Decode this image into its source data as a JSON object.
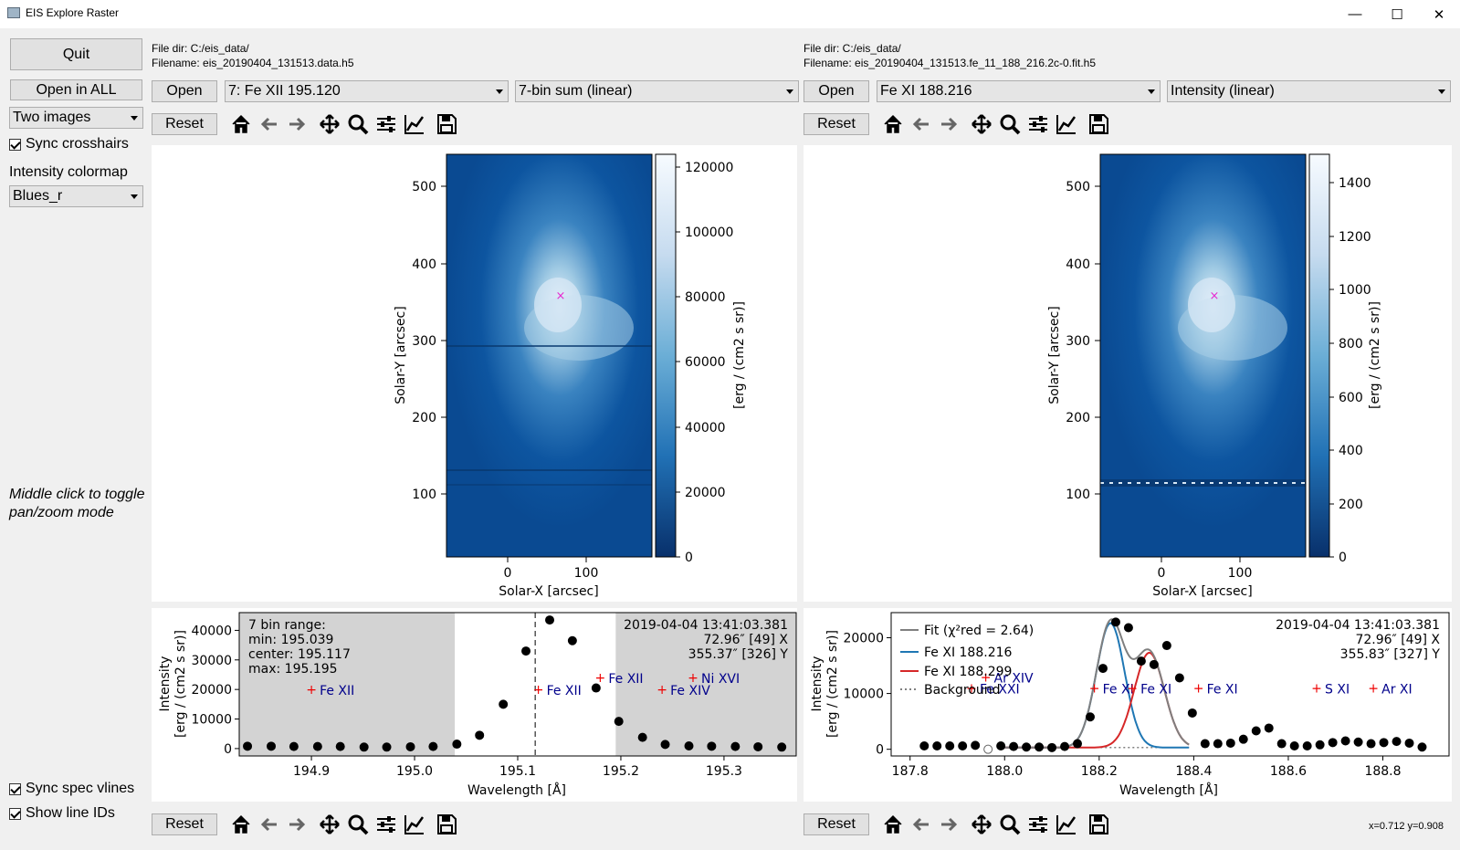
{
  "window": {
    "title": "EIS Explore Raster",
    "minimize": "—",
    "maximize": "☐",
    "close": "✕"
  },
  "sidebar": {
    "quit": "Quit",
    "open_all": "Open in ALL",
    "layout": "Two images",
    "sync_crosshairs": "Sync crosshairs",
    "colormap_label": "Intensity colormap",
    "colormap": "Blues_r",
    "hint_line1": "Middle click to toggle",
    "hint_line2": "pan/zoom mode",
    "sync_spec": "Sync spec vlines",
    "show_line_ids": "Show line IDs"
  },
  "left": {
    "file_dir": "File dir: C:/eis_data/",
    "filename": "Filename: eis_20190404_131513.data.h5",
    "open": "Open",
    "line": "7: Fe XII 195.120",
    "mode": "7-bin sum (linear)",
    "reset": "Reset",
    "reset_bottom": "Reset",
    "image": {
      "ylabel": "Solar-Y [arcsec]",
      "xlabel": "Solar-X [arcsec]",
      "yticks": [
        "500",
        "400",
        "300",
        "200",
        "100"
      ],
      "xticks": [
        "0",
        "100"
      ],
      "cbar_label": "[erg / (cm2 s sr)]",
      "cbar_ticks": [
        "120000",
        "100000",
        "80000",
        "60000",
        "40000",
        "20000",
        "0"
      ]
    },
    "spectrum": {
      "ylabel1": "Intensity",
      "ylabel2": "[erg / (cm2 s sr)]",
      "xlabel": "Wavelength [Å]",
      "range_title": "7 bin range:",
      "range_min": "min: 195.039",
      "range_center": "center: 195.117",
      "range_max": "max: 195.195",
      "timestamp": "2019-04-04 13:41:03.381",
      "xpos": "72.96″ [49] X",
      "ypos": "355.37″ [326] Y",
      "line_ids": [
        "Fe XII",
        "Fe XII",
        "Fe XII",
        "Fe XIV",
        "Ni XVI"
      ],
      "ytick_labels": [
        "40000",
        "30000",
        "20000",
        "10000",
        "0"
      ],
      "xtick_labels": [
        "194.9",
        "195.0",
        "195.1",
        "195.2",
        "195.3"
      ]
    }
  },
  "right": {
    "file_dir": "File dir: C:/eis_data/",
    "filename": "Filename: eis_20190404_131513.fe_11_188_216.2c-0.fit.h5",
    "open": "Open",
    "line": "Fe XI 188.216",
    "mode": "Intensity (linear)",
    "reset": "Reset",
    "reset_bottom": "Reset",
    "image": {
      "ylabel": "Solar-Y [arcsec]",
      "xlabel": "Solar-X [arcsec]",
      "yticks": [
        "500",
        "400",
        "300",
        "200",
        "100"
      ],
      "xticks": [
        "0",
        "100"
      ],
      "cbar_label": "[erg / (cm2 s sr)]",
      "cbar_ticks": [
        "1400",
        "1200",
        "1000",
        "800",
        "600",
        "400",
        "200",
        "0"
      ]
    },
    "spectrum": {
      "ylabel1": "Intensity",
      "ylabel2": "[erg / (cm2 s sr)]",
      "xlabel": "Wavelength [Å]",
      "legend_fit": "Fit (χ²red = 2.64)",
      "legend_fe188216": "Fe XI 188.216",
      "legend_fe188299": "Fe XI 188.299",
      "legend_bg": "Background",
      "timestamp": "2019-04-04 13:41:03.381",
      "xpos": "72.96″ [49] X",
      "ypos": "355.83″ [327] Y",
      "line_ids": [
        "Fe XXI",
        "Ar XIV",
        "Fe XI",
        "Fe XI",
        "Fe XI",
        "S XI",
        "Ar XI"
      ],
      "ytick_labels": [
        "20000",
        "10000",
        "0"
      ],
      "xtick_labels": [
        "187.8",
        "188.0",
        "188.2",
        "188.4",
        "188.6",
        "188.8"
      ]
    }
  },
  "status": "x=0.712 y=0.908",
  "chart_data": [
    {
      "type": "scatter",
      "xlabel": "Wavelength [Å]",
      "ylabel": "Intensity [erg / (cm2 s sr)]",
      "xlim": [
        194.83,
        195.37
      ],
      "ylim": [
        -2500,
        46000
      ],
      "x": [
        194.838,
        194.861,
        194.883,
        194.906,
        194.928,
        194.951,
        194.973,
        194.996,
        195.018,
        195.041,
        195.063,
        195.086,
        195.108,
        195.131,
        195.153,
        195.176,
        195.198,
        195.221,
        195.243,
        195.266,
        195.288,
        195.311,
        195.333,
        195.356
      ],
      "y": [
        800,
        800,
        700,
        700,
        700,
        500,
        500,
        600,
        700,
        1500,
        4500,
        15000,
        33000,
        43500,
        36500,
        20500,
        9200,
        3800,
        1400,
        900,
        800,
        700,
        600,
        500
      ],
      "vline": 195.117,
      "shaded": [
        [
          194.83,
          195.039
        ],
        [
          195.195,
          195.37
        ]
      ],
      "line_id_positions": [
        [
          194.9,
          20000
        ],
        [
          195.12,
          20000
        ],
        [
          195.18,
          24000
        ],
        [
          195.24,
          20000
        ],
        [
          195.27,
          24000
        ]
      ]
    },
    {
      "type": "line",
      "xlabel": "Wavelength [Å]",
      "ylabel": "Intensity [erg / (cm2 s sr)]",
      "xlim": [
        187.76,
        188.94
      ],
      "ylim": [
        -1200,
        24500
      ],
      "x": [
        187.83,
        187.857,
        187.884,
        187.911,
        187.938,
        187.965,
        187.992,
        188.019,
        188.046,
        188.073,
        188.1,
        188.127,
        188.154,
        188.181,
        188.208,
        188.235,
        188.262,
        188.289,
        188.316,
        188.343,
        188.37,
        188.397,
        188.424,
        188.451,
        188.478,
        188.505,
        188.532,
        188.559,
        188.586,
        188.613,
        188.64,
        188.667,
        188.694,
        188.721,
        188.748,
        188.775,
        188.802,
        188.829,
        188.856,
        188.883
      ],
      "y": [
        600,
        600,
        600,
        600,
        700,
        0,
        600,
        500,
        400,
        400,
        300,
        500,
        1000,
        5800,
        14500,
        22800,
        21800,
        15800,
        15200,
        18600,
        12800,
        6500,
        1000,
        1000,
        1100,
        1800,
        3300,
        3800,
        1000,
        600,
        600,
        800,
        1200,
        1500,
        1300,
        1000,
        1200,
        1400,
        1100,
        400
      ],
      "series": [
        {
          "name": "Fit (χ²red = 2.64)",
          "color": "#7f7f7f"
        },
        {
          "name": "Fe XI 188.216",
          "color": "#1f77b4",
          "center": 188.224,
          "amplitude": 22300,
          "sigma": 0.03
        },
        {
          "name": "Fe XI 188.299",
          "color": "#d62728",
          "center": 188.306,
          "amplitude": 17000,
          "sigma": 0.032
        },
        {
          "name": "Background",
          "color": "#7f7f7f",
          "value": 300
        }
      ],
      "line_id_positions": [
        [
          187.93,
          11000
        ],
        [
          187.96,
          13000
        ],
        [
          188.19,
          11000
        ],
        [
          188.27,
          11000
        ],
        [
          188.41,
          11000
        ],
        [
          188.66,
          11000
        ],
        [
          188.78,
          11000
        ]
      ]
    }
  ]
}
